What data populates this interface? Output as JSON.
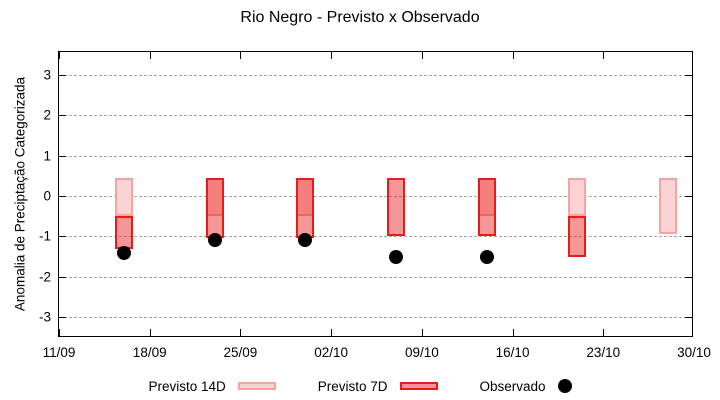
{
  "title": "Rio Negro - Previsto x Observado",
  "axes": {
    "y_label": "Anomalia de Preciptação Categorizada",
    "y_ticks": [
      3,
      2,
      1,
      0,
      -1,
      -2,
      -3
    ],
    "x_ticks": [
      "11/09",
      "18/09",
      "25/09",
      "02/10",
      "09/10",
      "16/10",
      "23/10",
      "30/10"
    ],
    "x_tick_interval_days": 7,
    "x_span_days": 49,
    "ylim": [
      -3.5,
      3.5
    ],
    "grid": "dashed"
  },
  "colors": {
    "previsto14_fill": "#fcd3d3",
    "previsto14_border": "#f5a3a3",
    "previsto7_fill": "rgba(235,25,25,0.45)",
    "previsto7_fill_flat": "#f69292",
    "previsto7_border": "#e91c1c",
    "observado": "#000000",
    "grid": "#a6a6a6",
    "axis": "#000000"
  },
  "legend": [
    {
      "label": "Previsto 14D",
      "swatch": "box-light"
    },
    {
      "label": "Previsto 7D",
      "swatch": "box-red"
    },
    {
      "label": "Observado",
      "swatch": "dot"
    }
  ],
  "chart_data": {
    "type": "bar",
    "title": "Rio Negro - Previsto x Observado",
    "xlabel": "",
    "ylabel": "Anomalia de Preciptação Categorizada",
    "ylim": [
      -3.5,
      3.5
    ],
    "x_axis_dates": [
      "11/09",
      "18/09",
      "25/09",
      "02/10",
      "09/10",
      "16/10",
      "23/10",
      "30/10"
    ],
    "legend_position": "bottom-center",
    "groups": [
      {
        "date": "16/09",
        "day": 5,
        "previsto_14d": [
          0.45,
          -0.5
        ],
        "previsto_7d": [
          -0.5,
          -1.3
        ],
        "observado": -1.4
      },
      {
        "date": "23/09",
        "day": 12,
        "previsto_14d": [
          0.45,
          -0.5
        ],
        "previsto_7d": [
          0.45,
          -1.05
        ],
        "observado": -1.1
      },
      {
        "date": "30/09",
        "day": 19,
        "previsto_14d": [
          0.45,
          -0.5
        ],
        "previsto_7d": [
          0.45,
          -1.05
        ],
        "observado": -1.1
      },
      {
        "date": "07/10",
        "day": 26,
        "previsto_14d": null,
        "previsto_7d": [
          0.45,
          -1.0
        ],
        "observado": -1.5
      },
      {
        "date": "14/10",
        "day": 33,
        "previsto_14d": [
          0.45,
          -0.5
        ],
        "previsto_7d": [
          0.45,
          -1.0
        ],
        "observado": -1.5
      },
      {
        "date": "21/10",
        "day": 40,
        "previsto_14d": [
          0.45,
          -0.5
        ],
        "previsto_7d": [
          -0.5,
          -1.5
        ],
        "observado": null
      },
      {
        "date": "28/10",
        "day": 47,
        "previsto_14d": [
          0.45,
          -0.95
        ],
        "previsto_7d": null,
        "observado": null
      }
    ]
  }
}
